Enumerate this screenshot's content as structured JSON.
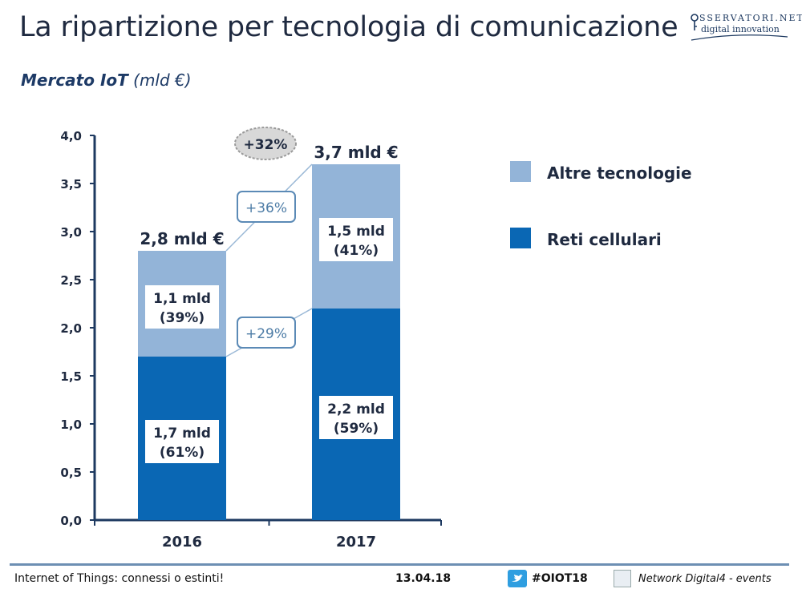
{
  "slide": {
    "title": "La ripartizione per tecnologia di comunicazione",
    "subtitle_bold": "Mercato IoT",
    "subtitle_unit": "(mld €)"
  },
  "logo": {
    "brand": "SSERVATORI.NET",
    "tagline": "digital innovation"
  },
  "footer": {
    "left": "Internet of Things: connessi o estinti!",
    "date": "13.04.18",
    "hashtag": "#OIOT18",
    "network": "Network Digital4 - events"
  },
  "colors": {
    "reti": "#0a67b4",
    "altre": "#93b4d8",
    "axis": "#1d3960",
    "text": "#1f2a40",
    "badge": "#d8d8d8"
  },
  "chart_data": {
    "type": "bar",
    "stacked": true,
    "categories": [
      "2016",
      "2017"
    ],
    "series": [
      {
        "name": "Reti cellulari",
        "values": [
          1.7,
          2.2
        ],
        "labels": [
          "1,7 mld",
          "2,2 mld"
        ],
        "shares": [
          "(61%)",
          "(59%)"
        ]
      },
      {
        "name": "Altre tecnologie",
        "values": [
          1.1,
          1.5
        ],
        "labels": [
          "1,1 mld",
          "1,5 mld"
        ],
        "shares": [
          "(39%)",
          "(41%)"
        ]
      }
    ],
    "totals": [
      "2,8 mld €",
      "3,7 mld €"
    ],
    "ylim": [
      0,
      4
    ],
    "yticks": [
      "0,0",
      "0,5",
      "1,0",
      "1,5",
      "2,0",
      "2,5",
      "3,0",
      "3,5",
      "4,0"
    ],
    "legend": [
      "Altre tecnologie",
      "Reti cellulari"
    ],
    "legend_position": "right",
    "growth": {
      "total": "+32%",
      "altre": "+36%",
      "reti": "+29%"
    }
  }
}
